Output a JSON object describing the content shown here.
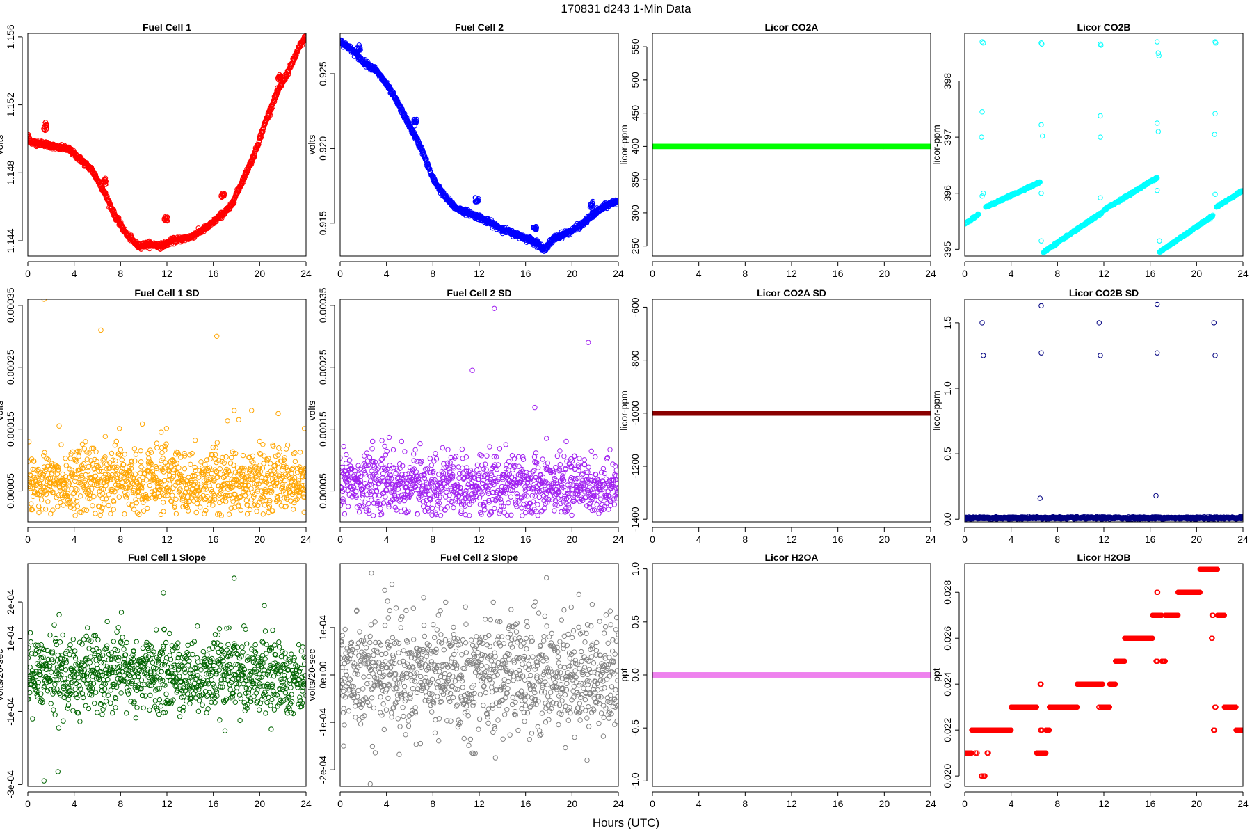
{
  "figure": {
    "suptitle": "170831    d243    1-Min Data",
    "xlabel": "Hours (UTC)"
  },
  "chart_data": [
    {
      "type": "scatter",
      "title": "Fuel Cell 1",
      "ylabel": "volts",
      "xlim": [
        0,
        24
      ],
      "ylim": [
        1.1431,
        1.1562
      ],
      "xticks": [
        0,
        4,
        8,
        12,
        16,
        20,
        24
      ],
      "yticks": [
        1.144,
        1.148,
        1.152,
        1.156
      ],
      "ytick_labels": [
        "1.144",
        "1.148",
        "1.152",
        "1.156"
      ],
      "color": "#ff0000",
      "model": "piecewise",
      "noise": 8e-05,
      "profile": [
        [
          0,
          1.1502
        ],
        [
          0.3,
          1.1498
        ],
        [
          1.5,
          1.1497
        ],
        [
          2.5,
          1.1495
        ],
        [
          3.5,
          1.1494
        ],
        [
          4.5,
          1.1488
        ],
        [
          5.5,
          1.1482
        ],
        [
          6.5,
          1.147
        ],
        [
          7.5,
          1.1455
        ],
        [
          8.5,
          1.1444
        ],
        [
          9.5,
          1.1437
        ],
        [
          10.5,
          1.1438
        ],
        [
          11.5,
          1.1437
        ],
        [
          12.5,
          1.144
        ],
        [
          14,
          1.1442
        ],
        [
          15.5,
          1.1448
        ],
        [
          16.5,
          1.1454
        ],
        [
          17.5,
          1.146
        ],
        [
          18.5,
          1.1475
        ],
        [
          19.5,
          1.149
        ],
        [
          20.5,
          1.151
        ],
        [
          21.5,
          1.1527
        ],
        [
          22.5,
          1.154
        ],
        [
          23.5,
          1.1555
        ],
        [
          24,
          1.156
        ]
      ],
      "clusters": [
        [
          1.5,
          1.1507
        ],
        [
          6.6,
          1.1475
        ],
        [
          11.9,
          1.1453
        ],
        [
          16.8,
          1.1467
        ],
        [
          21.7,
          1.1536
        ]
      ]
    },
    {
      "type": "scatter",
      "title": "Fuel Cell 2",
      "ylabel": "volts",
      "xlim": [
        0,
        24
      ],
      "ylim": [
        0.9128,
        0.9277
      ],
      "xticks": [
        0,
        4,
        8,
        12,
        16,
        20,
        24
      ],
      "yticks": [
        0.915,
        0.92,
        0.925
      ],
      "ytick_labels": [
        "0.915",
        "0.920",
        "0.925"
      ],
      "color": "#0000ff",
      "model": "piecewise",
      "noise": 9e-05,
      "profile": [
        [
          0,
          0.9272
        ],
        [
          1,
          0.9266
        ],
        [
          2,
          0.9258
        ],
        [
          3,
          0.9253
        ],
        [
          4,
          0.9243
        ],
        [
          5,
          0.923
        ],
        [
          6,
          0.9215
        ],
        [
          7,
          0.92
        ],
        [
          8,
          0.918
        ],
        [
          9,
          0.9168
        ],
        [
          10,
          0.916
        ],
        [
          11,
          0.9157
        ],
        [
          12,
          0.9154
        ],
        [
          13,
          0.915
        ],
        [
          14,
          0.9146
        ],
        [
          15,
          0.9143
        ],
        [
          16,
          0.914
        ],
        [
          17,
          0.9137
        ],
        [
          17.5,
          0.9132
        ],
        [
          18.5,
          0.914
        ],
        [
          20,
          0.9145
        ],
        [
          21,
          0.915
        ],
        [
          22,
          0.9157
        ],
        [
          23,
          0.9162
        ],
        [
          24,
          0.9165
        ]
      ],
      "clusters": [
        [
          1.6,
          0.9266
        ],
        [
          6.5,
          0.9218
        ],
        [
          11.8,
          0.9165
        ],
        [
          16.8,
          0.9146
        ],
        [
          21.7,
          0.9162
        ]
      ]
    },
    {
      "type": "scatter",
      "title": "Licor CO2A",
      "ylabel": "licor-ppm",
      "xlim": [
        0,
        24
      ],
      "ylim": [
        235,
        570
      ],
      "xticks": [
        0,
        4,
        8,
        12,
        16,
        20,
        24
      ],
      "yticks": [
        250,
        300,
        350,
        400,
        450,
        500,
        550
      ],
      "ytick_labels": [
        "250",
        "300",
        "350",
        "400",
        "450",
        "500",
        "550"
      ],
      "color": "#00ff00",
      "model": "constant",
      "value": 400
    },
    {
      "type": "scatter",
      "title": "Licor CO2B",
      "ylabel": "licor-ppm",
      "xlim": [
        0,
        24
      ],
      "ylim": [
        394.88,
        398.85
      ],
      "xticks": [
        0,
        4,
        8,
        12,
        16,
        20,
        24
      ],
      "yticks": [
        395,
        396,
        397,
        398
      ],
      "ytick_labels": [
        "395",
        "396",
        "397",
        "398"
      ],
      "color": "#00ffff",
      "model": "sawtooth",
      "segments": [
        [
          0,
          1.2,
          395.45,
          395.62
        ],
        [
          1.8,
          6.5,
          395.75,
          396.2
        ],
        [
          6.8,
          11.8,
          394.95,
          395.65
        ],
        [
          12,
          16.6,
          395.7,
          396.28
        ],
        [
          16.8,
          21.4,
          394.95,
          395.6
        ],
        [
          21.7,
          24,
          395.75,
          396.05
        ]
      ],
      "outliers": [
        [
          1.5,
          398.7
        ],
        [
          1.6,
          398.68
        ],
        [
          1.5,
          397.45
        ],
        [
          1.45,
          397.0
        ],
        [
          1.5,
          395.95
        ],
        [
          1.6,
          396.0
        ],
        [
          6.6,
          398.68
        ],
        [
          6.65,
          398.66
        ],
        [
          6.6,
          397.22
        ],
        [
          6.7,
          397.02
        ],
        [
          6.6,
          396.0
        ],
        [
          6.6,
          395.15
        ],
        [
          11.7,
          398.66
        ],
        [
          11.75,
          398.64
        ],
        [
          11.7,
          397.38
        ],
        [
          11.7,
          397.0
        ],
        [
          11.7,
          395.92
        ],
        [
          16.6,
          398.7
        ],
        [
          16.7,
          398.5
        ],
        [
          16.75,
          398.45
        ],
        [
          16.6,
          397.25
        ],
        [
          16.7,
          397.1
        ],
        [
          16.6,
          396.05
        ],
        [
          16.8,
          395.15
        ],
        [
          21.6,
          398.7
        ],
        [
          21.65,
          398.68
        ],
        [
          21.6,
          397.42
        ],
        [
          21.55,
          397.05
        ],
        [
          21.6,
          395.98
        ]
      ]
    },
    {
      "type": "scatter",
      "title": "Fuel Cell 1 SD",
      "ylabel": "volts",
      "xlim": [
        0,
        24
      ],
      "ylim": [
        0.0,
        0.00036
      ],
      "xticks": [
        0,
        4,
        8,
        12,
        16,
        20,
        24
      ],
      "yticks": [
        5e-05,
        0.00015,
        0.00025,
        0.00035
      ],
      "ytick_labels": [
        "0.00005",
        "0.00015",
        "0.00025",
        "0.00035"
      ],
      "color": "#ffa500",
      "model": "noise",
      "base": 6.5e-05,
      "spread": 2.6e-05,
      "floor": 1e-05,
      "outliers": [
        [
          1.4,
          0.00036
        ],
        [
          6.3,
          0.00031
        ],
        [
          16.3,
          0.0003
        ],
        [
          17.8,
          0.00018
        ],
        [
          19.3,
          0.00018
        ],
        [
          21.6,
          0.000175
        ],
        [
          2.7,
          0.000155
        ],
        [
          11.5,
          0.000145
        ],
        [
          18.2,
          0.000165
        ],
        [
          20.0,
          0.00013
        ]
      ]
    },
    {
      "type": "scatter",
      "title": "Fuel Cell 2 SD",
      "ylabel": "volts",
      "xlim": [
        0,
        24
      ],
      "ylim": [
        0.0,
        0.00036
      ],
      "xticks": [
        0,
        4,
        8,
        12,
        16,
        20,
        24
      ],
      "yticks": [
        5e-05,
        0.00015,
        0.00025,
        0.00035
      ],
      "ytick_labels": [
        "0.00005",
        "0.00015",
        "0.00025",
        "0.00035"
      ],
      "color": "#a020f0",
      "model": "noise",
      "base": 6e-05,
      "spread": 2.4e-05,
      "floor": 1e-05,
      "outliers": [
        [
          13.3,
          0.000345
        ],
        [
          21.4,
          0.00029
        ],
        [
          11.4,
          0.000245
        ],
        [
          16.8,
          0.000185
        ],
        [
          17.8,
          0.000135
        ],
        [
          2.8,
          0.00013
        ],
        [
          5.3,
          0.00013
        ],
        [
          14.3,
          0.000125
        ],
        [
          19.5,
          0.00013
        ]
      ]
    },
    {
      "type": "scatter",
      "title": "Licor CO2A SD",
      "ylabel": "licor-ppm",
      "xlim": [
        0,
        24
      ],
      "ylim": [
        -1410,
        -570
      ],
      "xticks": [
        0,
        4,
        8,
        12,
        16,
        20,
        24
      ],
      "yticks": [
        -1400,
        -1200,
        -1000,
        -800,
        -600
      ],
      "ytick_labels": [
        "-1400",
        "-1200",
        "-1000",
        "-800",
        "-600"
      ],
      "color": "#8b0000",
      "model": "constant",
      "value": -1000
    },
    {
      "type": "scatter",
      "title": "Licor CO2B SD",
      "ylabel": "licor-ppm",
      "xlim": [
        0,
        24
      ],
      "ylim": [
        -0.02,
        1.68
      ],
      "xticks": [
        0,
        4,
        8,
        12,
        16,
        20,
        24
      ],
      "yticks": [
        0.0,
        0.5,
        1.0,
        1.5
      ],
      "ytick_labels": [
        "0.0",
        "0.5",
        "1.0",
        "1.5"
      ],
      "color": "#000080",
      "model": "constant",
      "value": 0.01,
      "jitter": 0.004,
      "outliers": [
        [
          1.5,
          1.5
        ],
        [
          1.6,
          1.25
        ],
        [
          6.6,
          1.63
        ],
        [
          6.6,
          1.27
        ],
        [
          6.5,
          0.16
        ],
        [
          11.6,
          1.5
        ],
        [
          11.7,
          1.25
        ],
        [
          16.6,
          1.64
        ],
        [
          16.6,
          1.27
        ],
        [
          16.5,
          0.18
        ],
        [
          21.5,
          1.5
        ],
        [
          21.6,
          1.25
        ]
      ]
    },
    {
      "type": "scatter",
      "title": "Fuel Cell 1 Slope",
      "ylabel": "volts/20-sec",
      "xlim": [
        0,
        24
      ],
      "ylim": [
        -0.000305,
        0.000305
      ],
      "xticks": [
        0,
        4,
        8,
        12,
        16,
        20,
        24
      ],
      "yticks": [
        -0.0003,
        -0.0001,
        0.0001,
        0.0002
      ],
      "ytick_labels": [
        "-3e-04",
        "-1e-04",
        "1e-04",
        "2e-04"
      ],
      "color": "#006400",
      "model": "noise",
      "base": 0.0,
      "spread": 5.2e-05,
      "outliers": [
        [
          1.4,
          -0.00029
        ],
        [
          2.6,
          -0.000265
        ],
        [
          17.8,
          0.000265
        ],
        [
          11.7,
          0.000225
        ],
        [
          20.4,
          0.00019
        ],
        [
          2.7,
          0.000165
        ]
      ]
    },
    {
      "type": "scatter",
      "title": "Fuel Cell 2 Slope",
      "ylabel": "volts/20-sec",
      "xlim": [
        0,
        24
      ],
      "ylim": [
        -0.000235,
        0.000235
      ],
      "xticks": [
        0,
        4,
        8,
        12,
        16,
        20,
        24
      ],
      "yticks": [
        -0.0002,
        -0.0001,
        0.0,
        0.0001
      ],
      "ytick_labels": [
        "-2e-04",
        "-1e-04",
        "0e+00",
        "1e-04"
      ],
      "color": "#808080",
      "model": "noise",
      "base": 0.0,
      "spread": 6e-05,
      "outliers": [
        [
          2.6,
          -0.00023
        ],
        [
          2.7,
          0.000215
        ],
        [
          17.8,
          0.000205
        ],
        [
          21.3,
          -0.00018
        ],
        [
          13.4,
          -0.000175
        ],
        [
          20.6,
          0.00017
        ],
        [
          0.3,
          -0.00015
        ],
        [
          11.4,
          -0.000165
        ]
      ]
    },
    {
      "type": "scatter",
      "title": "Licor H2OA",
      "ylabel": "ppt",
      "xlim": [
        0,
        24
      ],
      "ylim": [
        -1.05,
        1.05
      ],
      "xticks": [
        0,
        4,
        8,
        12,
        16,
        20,
        24
      ],
      "yticks": [
        -1.0,
        -0.5,
        0.0,
        0.5,
        1.0
      ],
      "ytick_labels": [
        "-1.0",
        "-0.5",
        "0.0",
        "0.5",
        "1.0"
      ],
      "color": "#ee82ee",
      "model": "constant",
      "value": 0.0
    },
    {
      "type": "scatter",
      "title": "Licor H2OB",
      "ylabel": "ppt",
      "xlim": [
        0,
        24
      ],
      "ylim": [
        0.01955,
        0.02925
      ],
      "xticks": [
        0,
        4,
        8,
        12,
        16,
        20,
        24
      ],
      "yticks": [
        0.02,
        0.022,
        0.024,
        0.026,
        0.028
      ],
      "ytick_labels": [
        "0.020",
        "0.022",
        "0.024",
        "0.026",
        "0.028"
      ],
      "color": "#ff0000",
      "model": "steps",
      "steps": [
        [
          0,
          0.6,
          0.021
        ],
        [
          0.6,
          4.0,
          0.022
        ],
        [
          4.0,
          6.2,
          0.023
        ],
        [
          6.2,
          7.0,
          0.021
        ],
        [
          7.0,
          7.3,
          0.022
        ],
        [
          7.3,
          9.7,
          0.023
        ],
        [
          9.7,
          11.8,
          0.024
        ],
        [
          11.8,
          12.5,
          0.023
        ],
        [
          12.5,
          13.0,
          0.024
        ],
        [
          13.0,
          13.8,
          0.025
        ],
        [
          13.8,
          16.2,
          0.026
        ],
        [
          16.2,
          17.0,
          0.027
        ],
        [
          17.0,
          17.3,
          0.025
        ],
        [
          17.3,
          18.4,
          0.027
        ],
        [
          18.4,
          20.3,
          0.028
        ],
        [
          20.3,
          21.8,
          0.029
        ],
        [
          21.8,
          22.4,
          0.027
        ],
        [
          22.4,
          23.4,
          0.023
        ],
        [
          23.4,
          24,
          0.022
        ]
      ],
      "extras": [
        [
          1.0,
          0.021
        ],
        [
          1.5,
          0.02
        ],
        [
          1.7,
          0.02
        ],
        [
          2.0,
          0.021
        ],
        [
          6.5,
          0.024
        ],
        [
          6.6,
          0.022
        ],
        [
          6.7,
          0.021
        ],
        [
          11.6,
          0.023
        ],
        [
          11.8,
          0.024
        ],
        [
          16.6,
          0.025
        ],
        [
          16.6,
          0.028
        ],
        [
          21.3,
          0.026
        ],
        [
          21.4,
          0.027
        ],
        [
          21.5,
          0.022
        ],
        [
          21.6,
          0.023
        ]
      ]
    }
  ]
}
